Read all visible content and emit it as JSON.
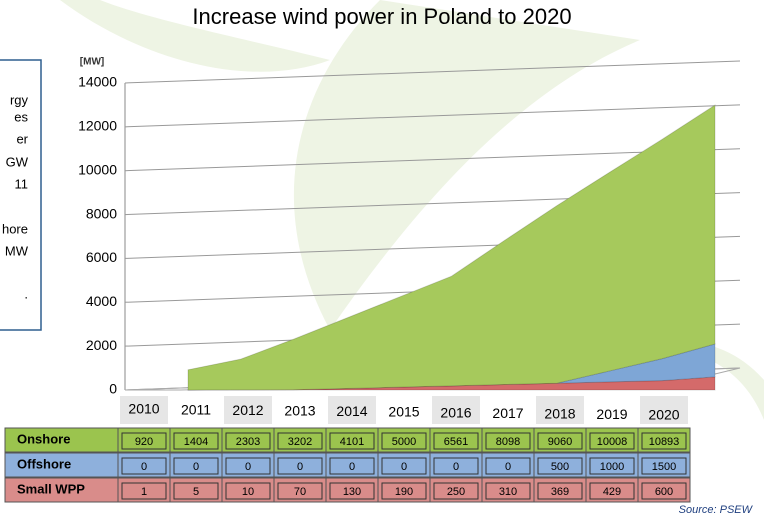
{
  "chart_data": {
    "type": "area",
    "title": "Increase wind power in Poland to 2020",
    "y_unit": "[MW]",
    "categories": [
      "2010",
      "2011",
      "2012",
      "2013",
      "2014",
      "2015",
      "2016",
      "2017",
      "2018",
      "2019",
      "2020"
    ],
    "series": [
      {
        "name": "Onshore",
        "color": "#a6c95c",
        "row_color": "#9bc44e",
        "values": [
          920,
          1404,
          2303,
          3202,
          4101,
          5000,
          6561,
          8098,
          9060,
          10008,
          10893
        ]
      },
      {
        "name": "Offshore",
        "color": "#7ea6d6",
        "row_color": "#8eb0dc",
        "values": [
          0,
          0,
          0,
          0,
          0,
          0,
          0,
          0,
          500,
          1000,
          1500
        ]
      },
      {
        "name": "Small WPP",
        "color": "#d46a6a",
        "row_color": "#d98c8a",
        "values": [
          1,
          5,
          10,
          70,
          130,
          190,
          250,
          310,
          369,
          429,
          600
        ]
      }
    ],
    "stacked": true,
    "ylim": [
      0,
      14000
    ],
    "yticks": [
      0,
      2000,
      4000,
      6000,
      8000,
      10000,
      12000,
      14000
    ],
    "grid": true,
    "source": "Source: PSEW",
    "side_note": [
      "rgy",
      "es",
      "er",
      "GW",
      "11",
      "hore",
      "MW",
      "."
    ]
  }
}
